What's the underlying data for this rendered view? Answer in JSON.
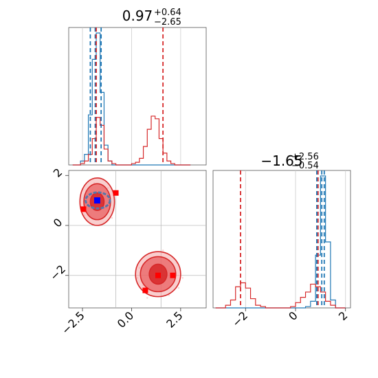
{
  "chart_data": [
    {
      "type": "histogram",
      "panel": "top-left",
      "title_value": "0.97",
      "title_upper": "+0.64",
      "title_lower": "−2.65",
      "xlim": [
        -3.2,
        3.8
      ],
      "bins": [
        -3.0,
        -2.8,
        -2.6,
        -2.4,
        -2.2,
        -2.0,
        -1.8,
        -1.6,
        -1.4,
        -1.2,
        -1.0,
        -0.8,
        -0.6,
        -0.4,
        -0.2,
        0.0,
        0.2,
        0.4,
        0.6,
        0.8,
        1.0,
        1.2,
        1.4,
        1.6,
        1.8,
        2.0,
        2.2,
        2.4,
        2.6,
        2.8
      ],
      "series": [
        {
          "color": "#1f77b4",
          "values": [
            0,
            0,
            0.03,
            0.08,
            0.38,
            0.8,
            1.0,
            0.55,
            0.15,
            0.03,
            0,
            0,
            0,
            0,
            0,
            0,
            0,
            0,
            0,
            0,
            0,
            0,
            0,
            0,
            0,
            0,
            0,
            0,
            0,
            0
          ]
        },
        {
          "color": "#d62728",
          "values": [
            0,
            0,
            0.01,
            0.03,
            0.08,
            0.2,
            0.36,
            0.3,
            0.12,
            0.03,
            0.01,
            0,
            0,
            0,
            0,
            0.01,
            0.02,
            0.05,
            0.14,
            0.27,
            0.37,
            0.35,
            0.2,
            0.09,
            0.03,
            0.01,
            0,
            0,
            0,
            0
          ]
        }
      ],
      "quantile_lines": [
        {
          "color": "#1f77b4",
          "x": [
            -2.1,
            -1.85,
            -1.55
          ]
        },
        {
          "color": "#d62728",
          "x": [
            -1.8,
            1.6
          ]
        }
      ]
    },
    {
      "type": "contour",
      "panel": "bottom-left",
      "xlim": [
        -3.2,
        3.8
      ],
      "ylim": [
        -3.3,
        2.2
      ],
      "xticks": [
        -2.5,
        0.0,
        2.5
      ],
      "xtick_labels": [
        "−2.5",
        "0.0",
        "2.5"
      ],
      "yticks": [
        -2,
        0,
        2
      ],
      "ytick_labels": [
        "−2",
        "0",
        "2"
      ],
      "ref_lines": {
        "x": [
          -0.8,
          1.5
        ],
        "y": [
          0.0,
          -2.0
        ]
      },
      "clusters": [
        {
          "cx": -1.75,
          "cy": 0.95,
          "rx": [
            0.35,
            0.68,
            0.88
          ],
          "ry": [
            0.35,
            0.72,
            0.95
          ]
        },
        {
          "cx": 1.35,
          "cy": -1.95,
          "rx": [
            0.45,
            0.9,
            1.15
          ],
          "ry": [
            0.4,
            0.7,
            0.9
          ]
        }
      ],
      "blue_contour": {
        "cx": -1.72,
        "cy": 1.0,
        "rx": 0.62,
        "ry": 0.32
      },
      "red_markers": [
        [
          -2.45,
          0.65
        ],
        [
          -0.8,
          1.3
        ],
        [
          1.35,
          -2.0
        ],
        [
          2.1,
          -2.0
        ],
        [
          0.7,
          -2.6
        ]
      ],
      "blue_marker": [
        -1.75,
        1.0
      ]
    },
    {
      "type": "histogram",
      "panel": "bottom-right",
      "title_value": "−1.65",
      "title_upper": "+2.56",
      "title_lower": "−0.54",
      "xlim": [
        -3.3,
        2.2
      ],
      "xticks": [
        -2,
        0,
        2
      ],
      "xtick_labels": [
        "−2",
        "0",
        "2"
      ],
      "bins": [
        -3.2,
        -3.0,
        -2.8,
        -2.6,
        -2.4,
        -2.2,
        -2.0,
        -1.8,
        -1.6,
        -1.4,
        -1.2,
        -1.0,
        -0.8,
        -0.6,
        -0.4,
        -0.2,
        0.0,
        0.2,
        0.4,
        0.6,
        0.8,
        1.0,
        1.2,
        1.4,
        1.6,
        1.8
      ],
      "series": [
        {
          "color": "#1f77b4",
          "values": [
            0,
            0,
            0,
            0,
            0,
            0,
            0,
            0,
            0,
            0,
            0,
            0,
            0,
            0,
            0,
            0,
            0,
            0,
            0.01,
            0.05,
            0.4,
            1.0,
            0.5,
            0.06,
            0,
            0
          ]
        },
        {
          "color": "#d62728",
          "values": [
            0,
            0,
            0.02,
            0.06,
            0.16,
            0.19,
            0.15,
            0.07,
            0.02,
            0.01,
            0,
            0,
            0,
            0,
            0,
            0.01,
            0.04,
            0.08,
            0.12,
            0.18,
            0.16,
            0.12,
            0.05,
            0.02,
            0,
            0
          ]
        }
      ],
      "quantile_lines": [
        {
          "color": "#d62728",
          "x": [
            -2.2,
            0.9
          ]
        },
        {
          "color": "#1f77b4",
          "x": [
            0.85,
            1.05,
            1.15
          ]
        }
      ]
    }
  ]
}
